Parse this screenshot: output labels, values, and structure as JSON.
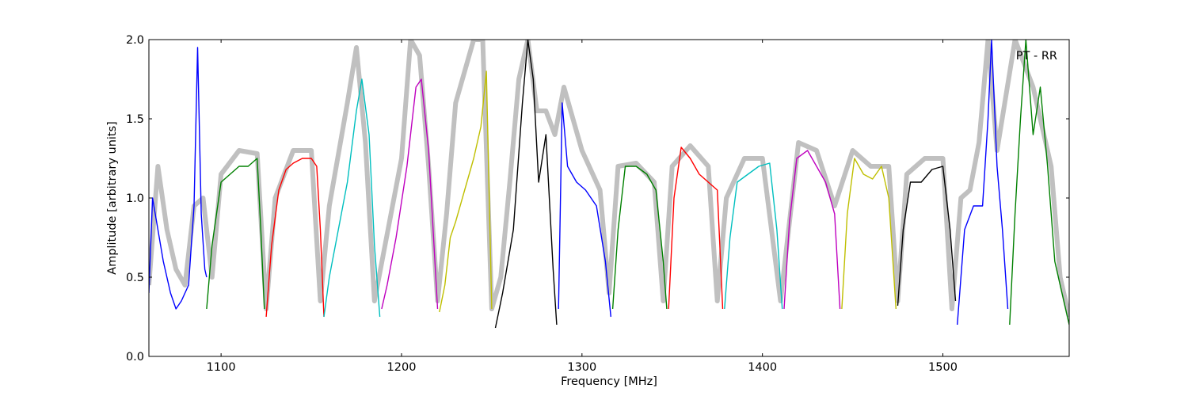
{
  "chart_data": {
    "type": "line",
    "title": "",
    "xlabel": "Frequency [MHz]",
    "ylabel": "Amplitude [arbitrary units]",
    "annotation": "PT - RR",
    "xlim": [
      1060,
      1570
    ],
    "ylim": [
      0.0,
      2.0
    ],
    "xticks": [
      1100,
      1200,
      1300,
      1400,
      1500
    ],
    "yticks": [
      0.0,
      0.5,
      1.0,
      1.5,
      2.0
    ],
    "xtick_labels": [
      "1100",
      "1200",
      "1300",
      "1400",
      "1500"
    ],
    "ytick_labels": [
      "0.0",
      "0.5",
      "1.0",
      "1.5",
      "2.0"
    ],
    "legend": "none",
    "grid": false,
    "background_colors": {
      "envelope": "#c0c0c0"
    },
    "envelope": {
      "x": [
        1060,
        1065,
        1070,
        1075,
        1080,
        1085,
        1090,
        1095,
        1100,
        1110,
        1120,
        1125,
        1130,
        1140,
        1150,
        1155,
        1160,
        1170,
        1175,
        1180,
        1185,
        1190,
        1200,
        1205,
        1210,
        1215,
        1220,
        1225,
        1230,
        1240,
        1245,
        1250,
        1255,
        1260,
        1265,
        1270,
        1275,
        1280,
        1285,
        1290,
        1300,
        1310,
        1315,
        1320,
        1330,
        1340,
        1345,
        1350,
        1360,
        1370,
        1375,
        1380,
        1390,
        1400,
        1410,
        1420,
        1430,
        1440,
        1450,
        1460,
        1470,
        1475,
        1480,
        1490,
        1500,
        1505,
        1510,
        1515,
        1520,
        1525,
        1530,
        1540,
        1550,
        1560,
        1565,
        1570
      ],
      "y": [
        0.45,
        1.2,
        0.8,
        0.55,
        0.45,
        0.95,
        1.0,
        0.5,
        1.15,
        1.3,
        1.28,
        0.3,
        1.0,
        1.3,
        1.3,
        0.35,
        0.95,
        1.6,
        1.95,
        1.35,
        0.35,
        0.65,
        1.25,
        2.0,
        1.9,
        1.2,
        0.35,
        0.9,
        1.6,
        2.0,
        2.0,
        0.3,
        0.5,
        1.1,
        1.75,
        2.0,
        1.55,
        1.55,
        1.4,
        1.7,
        1.3,
        1.05,
        0.4,
        1.2,
        1.22,
        1.1,
        0.35,
        1.2,
        1.33,
        1.2,
        0.35,
        1.0,
        1.25,
        1.25,
        0.35,
        1.35,
        1.3,
        0.95,
        1.3,
        1.2,
        1.2,
        0.35,
        1.15,
        1.25,
        1.25,
        0.3,
        1.0,
        1.05,
        1.35,
        2.0,
        1.3,
        2.0,
        1.7,
        1.2,
        0.5,
        0.25
      ]
    },
    "series": [
      {
        "color": "#0000ff",
        "x": [
          1060,
          1062,
          1065,
          1068,
          1072,
          1075,
          1078,
          1082,
          1085,
          1087,
          1089,
          1091,
          1092
        ],
        "y": [
          0.4,
          1.0,
          0.8,
          0.6,
          0.4,
          0.3,
          0.35,
          0.45,
          0.95,
          1.95,
          0.9,
          0.55,
          0.5
        ]
      },
      {
        "color": "#008000",
        "x": [
          1092,
          1095,
          1100,
          1105,
          1110,
          1115,
          1120,
          1122,
          1124
        ],
        "y": [
          0.3,
          0.7,
          1.1,
          1.15,
          1.2,
          1.2,
          1.25,
          0.8,
          0.3
        ]
      },
      {
        "color": "#ff0000",
        "x": [
          1125,
          1128,
          1132,
          1136,
          1140,
          1145,
          1150,
          1153,
          1155,
          1157
        ],
        "y": [
          0.25,
          0.7,
          1.05,
          1.18,
          1.22,
          1.25,
          1.25,
          1.2,
          0.8,
          0.25
        ]
      },
      {
        "color": "#00bfbf",
        "x": [
          1157,
          1160,
          1165,
          1170,
          1175,
          1178,
          1182,
          1185,
          1188
        ],
        "y": [
          0.25,
          0.5,
          0.8,
          1.1,
          1.55,
          1.75,
          1.4,
          0.7,
          0.25
        ]
      },
      {
        "color": "#bf00bf",
        "x": [
          1189,
          1192,
          1197,
          1203,
          1208,
          1211,
          1215,
          1218,
          1220
        ],
        "y": [
          0.3,
          0.45,
          0.75,
          1.2,
          1.7,
          1.75,
          1.3,
          0.7,
          0.3
        ]
      },
      {
        "color": "#bfbf00",
        "x": [
          1221,
          1224,
          1227,
          1230,
          1235,
          1240,
          1244,
          1247,
          1250
        ],
        "y": [
          0.28,
          0.45,
          0.75,
          0.85,
          1.05,
          1.25,
          1.45,
          1.8,
          0.3
        ]
      },
      {
        "color": "#000000",
        "x": [
          1252,
          1256,
          1262,
          1267,
          1270,
          1273,
          1276,
          1280,
          1284,
          1286
        ],
        "y": [
          0.18,
          0.4,
          0.8,
          1.6,
          2.0,
          1.75,
          1.1,
          1.4,
          0.55,
          0.2
        ]
      },
      {
        "color": "#0000ff",
        "x": [
          1287,
          1289,
          1292,
          1297,
          1302,
          1308,
          1313,
          1316
        ],
        "y": [
          0.3,
          1.6,
          1.2,
          1.1,
          1.05,
          0.95,
          0.6,
          0.25
        ]
      },
      {
        "color": "#008000",
        "x": [
          1317,
          1320,
          1324,
          1330,
          1336,
          1341,
          1345,
          1347
        ],
        "y": [
          0.3,
          0.8,
          1.2,
          1.2,
          1.15,
          1.05,
          0.6,
          0.3
        ]
      },
      {
        "color": "#ff0000",
        "x": [
          1348,
          1351,
          1355,
          1360,
          1365,
          1370,
          1375,
          1378
        ],
        "y": [
          0.3,
          1.0,
          1.32,
          1.25,
          1.15,
          1.1,
          1.05,
          0.3
        ]
      },
      {
        "color": "#00bfbf",
        "x": [
          1379,
          1382,
          1386,
          1392,
          1398,
          1404,
          1408,
          1411
        ],
        "y": [
          0.3,
          0.75,
          1.1,
          1.15,
          1.2,
          1.22,
          0.8,
          0.3
        ]
      },
      {
        "color": "#bf00bf",
        "x": [
          1412,
          1415,
          1419,
          1425,
          1430,
          1435,
          1440,
          1443
        ],
        "y": [
          0.3,
          0.85,
          1.25,
          1.3,
          1.2,
          1.1,
          0.9,
          0.3
        ]
      },
      {
        "color": "#bfbf00",
        "x": [
          1444,
          1447,
          1451,
          1456,
          1461,
          1466,
          1470,
          1474
        ],
        "y": [
          0.3,
          0.9,
          1.25,
          1.15,
          1.12,
          1.2,
          1.0,
          0.3
        ]
      },
      {
        "color": "#000000",
        "x": [
          1475,
          1478,
          1482,
          1488,
          1494,
          1500,
          1504,
          1507
        ],
        "y": [
          0.32,
          0.8,
          1.1,
          1.1,
          1.18,
          1.2,
          0.8,
          0.35
        ]
      },
      {
        "color": "#0000ff",
        "x": [
          1508,
          1512,
          1517,
          1522,
          1525,
          1527,
          1530,
          1533,
          1536
        ],
        "y": [
          0.2,
          0.8,
          0.95,
          0.95,
          1.5,
          2.0,
          1.2,
          0.8,
          0.3
        ]
      },
      {
        "color": "#008000",
        "x": [
          1537,
          1540,
          1543,
          1546,
          1550,
          1554,
          1558,
          1562,
          1566,
          1570
        ],
        "y": [
          0.2,
          0.9,
          1.5,
          2.0,
          1.4,
          1.7,
          1.2,
          0.6,
          0.4,
          0.2
        ]
      }
    ]
  }
}
